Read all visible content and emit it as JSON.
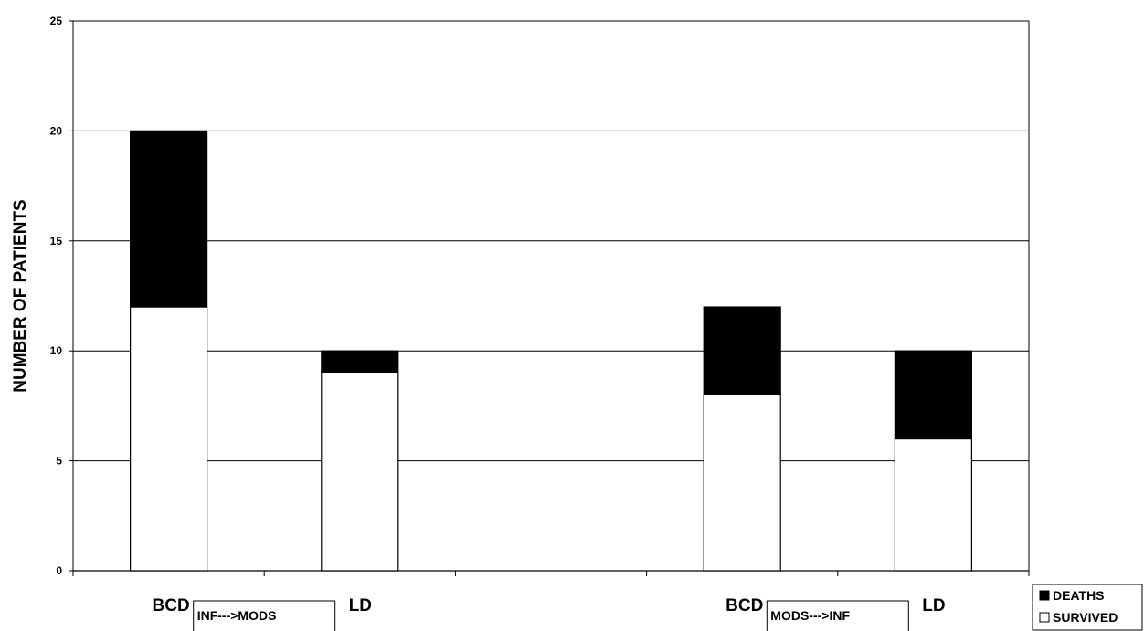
{
  "chart_data": {
    "type": "bar",
    "stacked": true,
    "categories": [
      "BCD",
      "LD",
      "BCD",
      "LD"
    ],
    "groups": [
      {
        "label": "INF--->MODS",
        "categories": [
          0,
          1
        ]
      },
      {
        "label": "MODS--->INF",
        "categories": [
          2,
          3
        ]
      }
    ],
    "series": [
      {
        "name": "SURVIVED",
        "color": "#ffffff",
        "values": [
          12,
          9,
          8,
          6
        ]
      },
      {
        "name": "DEATHS",
        "color": "#000000",
        "values": [
          8,
          1,
          4,
          4
        ]
      }
    ],
    "ylabel": "NUMBER OF PATIENTS",
    "xlabel": "",
    "ylim": [
      0,
      25
    ],
    "yticks": [
      "0",
      "5",
      "10",
      "15",
      "20",
      "25"
    ],
    "grid": true,
    "legend_position": "bottom-right"
  }
}
